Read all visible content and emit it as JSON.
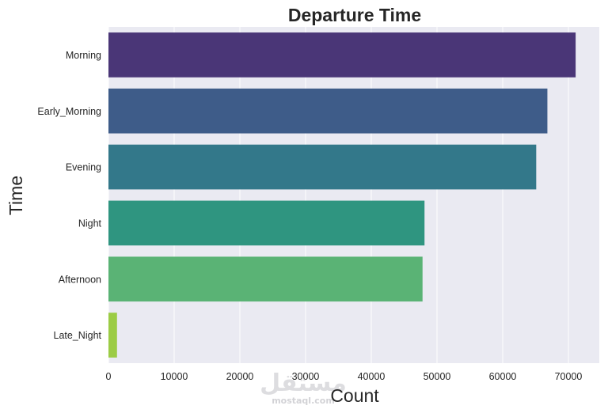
{
  "chart_data": {
    "type": "bar",
    "orientation": "horizontal",
    "title": "Departure Time",
    "xlabel": "Count",
    "ylabel": "Time",
    "categories": [
      "Morning",
      "Early_Morning",
      "Evening",
      "Night",
      "Afternoon",
      "Late_Night"
    ],
    "values": [
      71100,
      66800,
      65100,
      48100,
      47800,
      1300
    ],
    "colors": [
      "#4a3677",
      "#3e5c89",
      "#33788a",
      "#2f9580",
      "#5ab375",
      "#9ccc45"
    ],
    "xlim": [
      0,
      74700
    ],
    "xticks": [
      0,
      10000,
      20000,
      30000,
      40000,
      50000,
      60000,
      70000
    ],
    "grid": true,
    "background": "#eaeaf2"
  },
  "watermark": {
    "text": "مستقل",
    "subtext": "mostaql.com"
  }
}
